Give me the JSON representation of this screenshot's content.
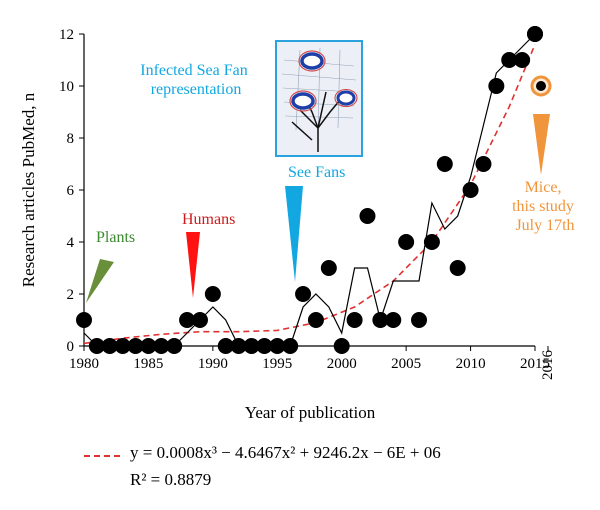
{
  "chart_data": {
    "type": "scatter",
    "xlabel": "Year of publication",
    "ylabel": "Research articles PubMed, n",
    "xlim": [
      1980,
      2016
    ],
    "ylim": [
      0,
      12
    ],
    "x_ticks": [
      1980,
      1985,
      1990,
      1995,
      2000,
      2005,
      2010,
      2015
    ],
    "y_ticks": [
      0,
      2,
      4,
      6,
      8,
      10,
      12
    ],
    "extra_x_tick": "2016",
    "series": [
      {
        "kind": "points",
        "x": [
          1980,
          1981,
          1982,
          1983,
          1984,
          1985,
          1986,
          1987,
          1988,
          1989,
          1990,
          1991,
          1992,
          1993,
          1994,
          1995,
          1996,
          1997,
          1998,
          1999,
          2000,
          2001,
          2002,
          2003,
          2004,
          2005,
          2006,
          2007,
          2008,
          2009,
          2010,
          2011,
          2012,
          2013,
          2014,
          2015,
          2015
        ],
        "y": [
          1,
          0,
          0,
          0,
          0,
          0,
          0,
          0,
          1,
          1,
          2,
          0,
          0,
          0,
          0,
          0,
          0,
          2,
          1,
          3,
          0,
          1,
          5,
          1,
          1,
          4,
          1,
          4,
          7,
          3,
          6,
          7,
          10,
          11,
          11,
          12,
          12
        ],
        "color": "#000000"
      },
      {
        "kind": "moving-average",
        "x": [
          1980,
          1981,
          1982,
          1983,
          1984,
          1985,
          1986,
          1987,
          1988,
          1989,
          1990,
          1991,
          1992,
          1993,
          1994,
          1995,
          1996,
          1997,
          1998,
          1999,
          2000,
          2001,
          2002,
          2003,
          2004,
          2005,
          2006,
          2007,
          2008,
          2009,
          2010,
          2011,
          2012,
          2013,
          2014,
          2015
        ],
        "y": [
          0.5,
          0,
          0,
          0,
          0,
          0,
          0,
          0,
          0.5,
          1,
          1.5,
          1,
          0,
          0,
          0,
          0,
          0,
          1.5,
          2,
          1.5,
          0.5,
          3,
          3,
          1,
          2.5,
          2.5,
          2.5,
          5.5,
          4.5,
          5,
          6.5,
          8.5,
          10.5,
          11,
          11.5,
          12
        ],
        "color": "#000000"
      },
      {
        "kind": "trendline",
        "formula": "y = 0.0008x^3 − 4.6467x^2 + 9246.2x − 6E + 06",
        "r2": "R^2 = 0.8879",
        "x": [
          1980,
          1983,
          1986,
          1989,
          1992,
          1995,
          1998,
          2001,
          2004,
          2007,
          2010,
          2013,
          2015
        ],
        "y": [
          0.1,
          0.3,
          0.45,
          0.55,
          0.55,
          0.6,
          0.9,
          1.5,
          2.5,
          4,
          6.2,
          9.2,
          11.6
        ],
        "color": "#e03030"
      }
    ],
    "highlight_point": {
      "x": 2016,
      "y": 10,
      "ring_color": "#f0953b"
    },
    "annotations": [
      {
        "text": "Plants",
        "color": "#3a8a2e",
        "marker_color": "#6a8f3a",
        "target_x": 1980.5
      },
      {
        "text": "Humans",
        "color": "#cc1b1b",
        "marker_color": "#ff1212",
        "target_x": 1988.5
      },
      {
        "text": "See Fans",
        "color": "#12a7e0",
        "marker_color": "#12a7e0",
        "target_x": 1996.5
      },
      {
        "text": "Infected Sea Fan representation",
        "color": "#12a7e0"
      },
      {
        "text": "Mice, this study July 17th",
        "color": "#f0953b",
        "marker_color": "#f0953b",
        "target_x": 2016
      }
    ]
  },
  "legend": {
    "formula_text": "y = 0.0008x³ − 4.6467x² + 9246.2x − 6E + 06",
    "r2_text": "R² = 0.8879"
  }
}
